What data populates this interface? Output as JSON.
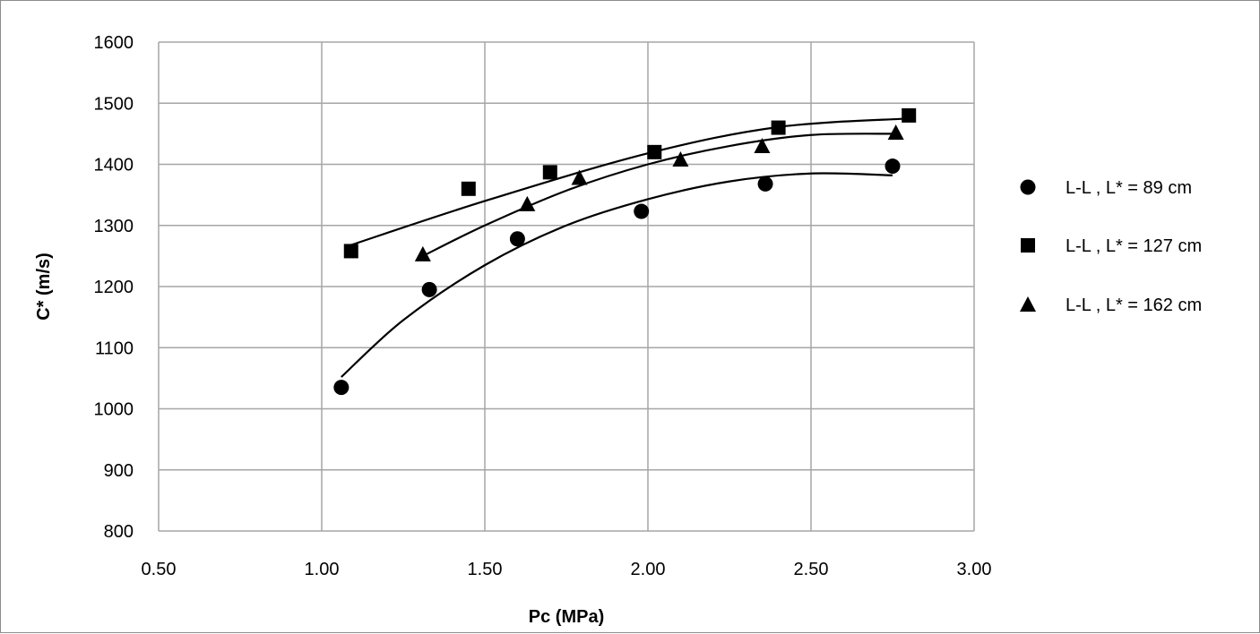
{
  "chart_data": {
    "type": "scatter",
    "title": "",
    "xlabel": "Pc (MPa)",
    "ylabel": "C* (m/s)",
    "xlim": [
      0.5,
      3.0
    ],
    "ylim": [
      800,
      1600
    ],
    "x_ticks": [
      "0.50",
      "1.00",
      "1.50",
      "2.00",
      "2.50",
      "3.00"
    ],
    "y_ticks": [
      "800",
      "900",
      "1000",
      "1100",
      "1200",
      "1300",
      "1400",
      "1500",
      "1600"
    ],
    "grid": true,
    "legend_position": "right",
    "series": [
      {
        "name": "L-L , L* = 89 cm",
        "marker": "circle",
        "points": [
          [
            1.06,
            1035
          ],
          [
            1.33,
            1195
          ],
          [
            1.6,
            1278
          ],
          [
            1.98,
            1323
          ],
          [
            2.36,
            1368
          ],
          [
            2.75,
            1397
          ]
        ],
        "trendline": [
          [
            1.06,
            1052
          ],
          [
            1.25,
            1145
          ],
          [
            1.5,
            1235
          ],
          [
            1.75,
            1300
          ],
          [
            2.0,
            1343
          ],
          [
            2.25,
            1372
          ],
          [
            2.5,
            1385
          ],
          [
            2.75,
            1382
          ]
        ]
      },
      {
        "name": "L-L , L* = 127 cm",
        "marker": "square",
        "points": [
          [
            1.09,
            1258
          ],
          [
            1.45,
            1360
          ],
          [
            1.7,
            1387
          ],
          [
            2.02,
            1420
          ],
          [
            2.4,
            1460
          ],
          [
            2.8,
            1480
          ]
        ],
        "trendline": [
          [
            1.09,
            1268
          ],
          [
            1.5,
            1340
          ],
          [
            2.0,
            1418
          ],
          [
            2.4,
            1461
          ],
          [
            2.8,
            1475
          ]
        ]
      },
      {
        "name": "L-L , L* = 162 cm",
        "marker": "triangle",
        "points": [
          [
            1.31,
            1253
          ],
          [
            1.63,
            1335
          ],
          [
            1.79,
            1378
          ],
          [
            2.1,
            1408
          ],
          [
            2.35,
            1430
          ],
          [
            2.76,
            1452
          ]
        ],
        "trendline": [
          [
            1.31,
            1250
          ],
          [
            1.5,
            1300
          ],
          [
            1.75,
            1357
          ],
          [
            2.0,
            1400
          ],
          [
            2.25,
            1430
          ],
          [
            2.5,
            1448
          ],
          [
            2.76,
            1450
          ]
        ]
      }
    ]
  }
}
